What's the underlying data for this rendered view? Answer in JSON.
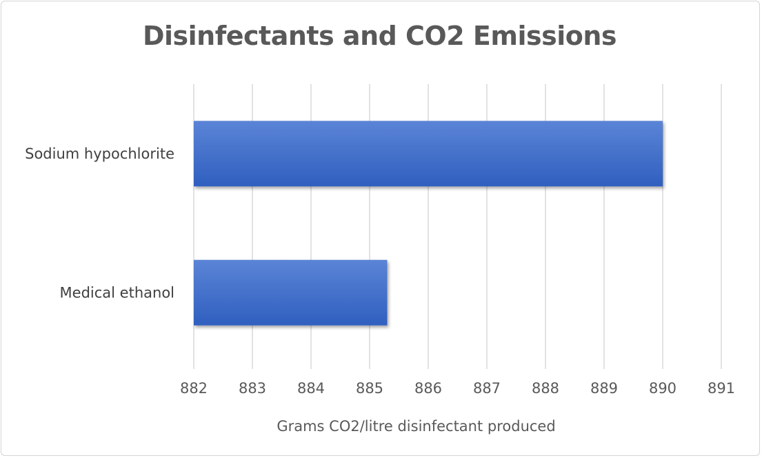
{
  "chart_data": {
    "type": "bar",
    "orientation": "horizontal",
    "title": "Disinfectants and CO2 Emissions",
    "xlabel": "Grams CO2/litre disinfectant produced",
    "ylabel": "",
    "categories": [
      "Sodium hypochlorite",
      "Medical ethanol"
    ],
    "values": [
      890,
      885.3
    ],
    "xlim": [
      882,
      891
    ],
    "xticks": [
      882,
      883,
      884,
      885,
      886,
      887,
      888,
      889,
      890,
      891
    ],
    "grid": true,
    "legend": "none",
    "colors": {
      "bar_top": "#5b84d6",
      "bar_bottom": "#2f5fbf",
      "grid": "#d9d9d9",
      "text": "#595959"
    }
  }
}
